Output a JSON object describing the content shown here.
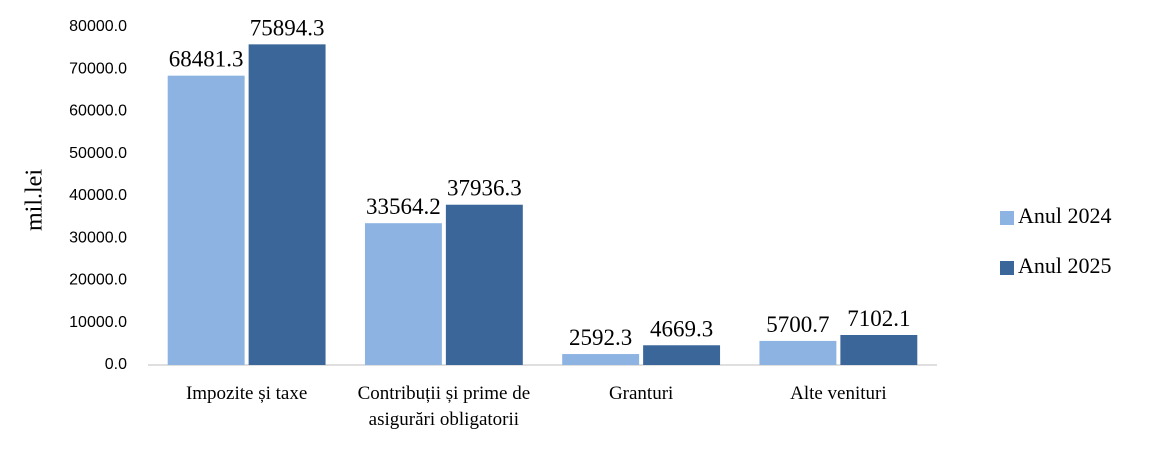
{
  "chart_data": {
    "type": "bar",
    "y_label": "mil.lei",
    "categories": [
      "Impozite și taxe",
      "Contribuții și prime de asigurări obligatorii",
      "Granturi",
      "Alte venituri"
    ],
    "series": [
      {
        "name": "Anul 2024",
        "color": "#8db3e2",
        "values": [
          68481.3,
          33564.2,
          2592.3,
          5700.7
        ]
      },
      {
        "name": "Anul 2025",
        "color": "#3a6699",
        "values": [
          75894.3,
          37936.3,
          4669.3,
          7102.1
        ]
      }
    ],
    "ylim": [
      0,
      80000
    ],
    "yticks": [
      {
        "value": 0,
        "label": "0.0"
      },
      {
        "value": 10000,
        "label": "10000.0"
      },
      {
        "value": 20000,
        "label": "20000.0"
      },
      {
        "value": 30000,
        "label": "30000.0"
      },
      {
        "value": 40000,
        "label": "40000.0"
      },
      {
        "value": 50000,
        "label": "50000.0"
      },
      {
        "value": 60000,
        "label": "60000.0"
      },
      {
        "value": 70000,
        "label": "70000.0"
      },
      {
        "value": 80000,
        "label": "80000.0"
      }
    ],
    "legend": "right"
  }
}
